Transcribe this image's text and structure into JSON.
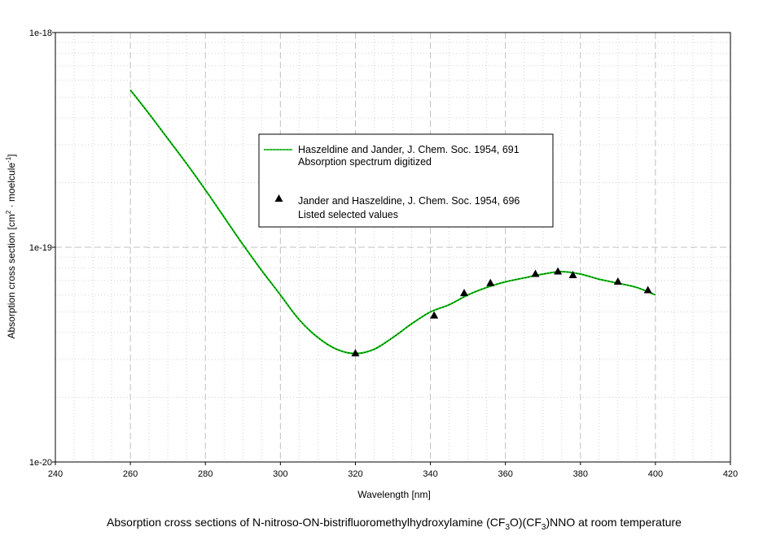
{
  "chart_data": {
    "type": "line",
    "title": "",
    "xlabel": "Wavelength [nm]",
    "ylabel_parts": [
      "Absorption cross section [cm",
      "2",
      " · moelcule",
      "-1",
      "]"
    ],
    "xlim": [
      240,
      420
    ],
    "ylim": [
      1e-20,
      1e-18
    ],
    "yscale": "log",
    "grid": true,
    "xticks": [
      240,
      260,
      280,
      300,
      320,
      340,
      360,
      380,
      400,
      420
    ],
    "xtick_labels": [
      "240",
      "260",
      "280",
      "300",
      "320",
      "340",
      "360",
      "380",
      "400",
      "420"
    ],
    "yticks": [
      1e-20,
      1e-19,
      1e-18
    ],
    "ytick_labels": [
      "1e-20",
      "1e-19",
      "1e-18"
    ],
    "legend_position": "upper-center",
    "series": [
      {
        "name_lines": [
          "Haszeldine and Jander, J. Chem. Soc. 1954, 691",
          "Absorption spectrum digitized"
        ],
        "style": "line",
        "color": "#00c000",
        "x": [
          260,
          265,
          270,
          275,
          280,
          285,
          290,
          295,
          300,
          305,
          310,
          315,
          320,
          325,
          330,
          335,
          340,
          345,
          350,
          355,
          360,
          365,
          370,
          375,
          380,
          385,
          390,
          395,
          400
        ],
        "y": [
          5.4e-19,
          4.18e-19,
          3.2e-19,
          2.45e-19,
          1.85e-19,
          1.38e-19,
          1.03e-19,
          7.8e-20,
          6e-20,
          4.6e-20,
          3.8e-20,
          3.35e-20,
          3.2e-20,
          3.35e-20,
          3.8e-20,
          4.4e-20,
          5e-20,
          5.4e-20,
          6e-20,
          6.5e-20,
          6.9e-20,
          7.2e-20,
          7.5e-20,
          7.7e-20,
          7.5e-20,
          7.1e-20,
          6.8e-20,
          6.5e-20,
          6e-20
        ]
      },
      {
        "name_lines": [
          "Jander and Haszeldine, J. Chem. Soc. 1954, 696",
          "Listed selected values"
        ],
        "style": "marker",
        "color": "#000000",
        "x": [
          320,
          341,
          349,
          356,
          368,
          374,
          378,
          390,
          398
        ],
        "y": [
          3.2e-20,
          4.8e-20,
          6.1e-20,
          6.8e-20,
          7.5e-20,
          7.7e-20,
          7.4e-20,
          6.9e-20,
          6.3e-20
        ]
      }
    ]
  },
  "caption": {
    "segments": [
      {
        "t": "Absorption cross sections of  N-nitroso-ON-bistrifluoromethylhydroxylamine (CF",
        "sub": false
      },
      {
        "t": "3",
        "sub": true
      },
      {
        "t": "O)(CF",
        "sub": false
      },
      {
        "t": "3",
        "sub": true
      },
      {
        "t": ")NNO at room temperature",
        "sub": false
      }
    ]
  }
}
